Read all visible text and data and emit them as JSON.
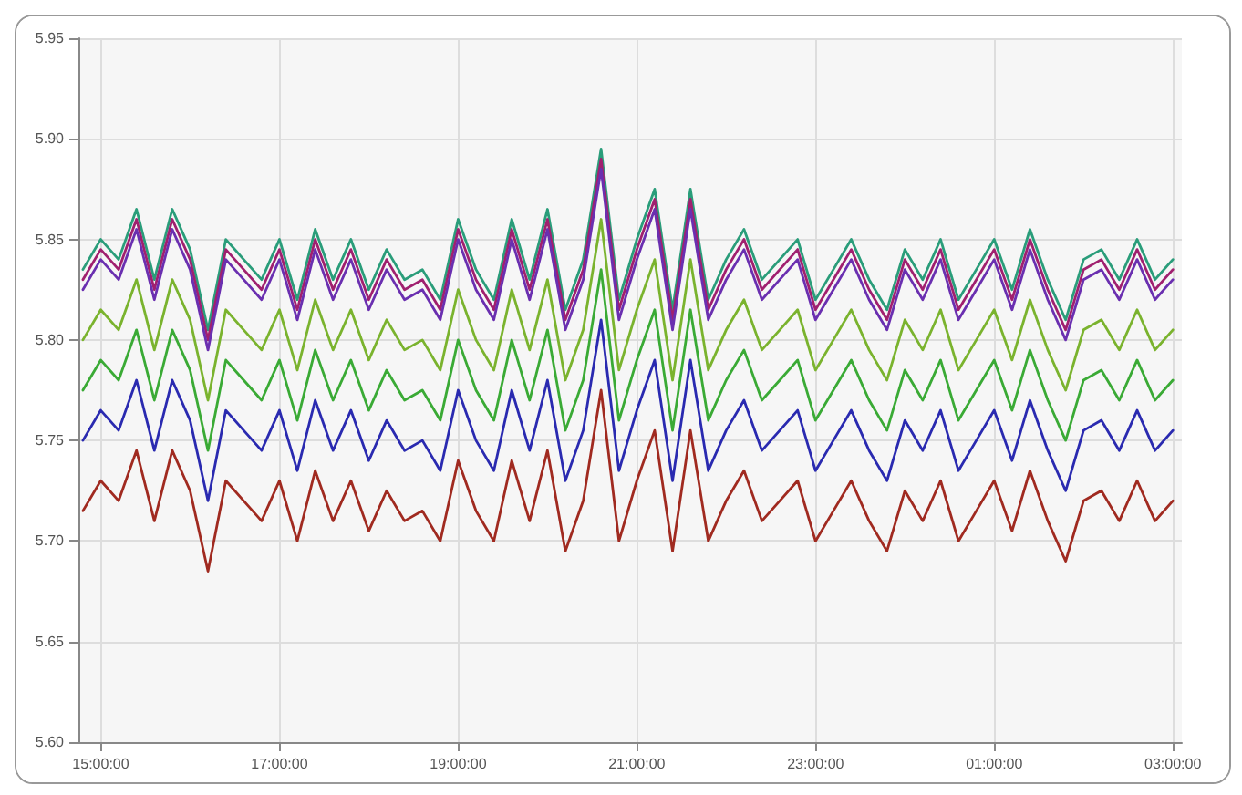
{
  "chart_data": {
    "type": "line",
    "x": [
      "--01-01T14:48",
      "--01-01T15:00",
      "--01-01T15:12",
      "--01-01T15:24",
      "--01-01T15:36",
      "--01-01T15:48",
      "--01-01T16:00",
      "--01-01T16:12",
      "--01-01T16:24",
      "--01-01T16:36",
      "--01-01T16:48",
      "--01-01T17:00",
      "--01-01T17:12",
      "--01-01T17:24",
      "--01-01T17:36",
      "--01-01T17:48",
      "--01-01T18:00",
      "--01-01T18:12",
      "--01-01T18:24",
      "--01-01T18:36",
      "--01-01T18:48",
      "--01-01T19:00",
      "--01-01T19:12",
      "--01-01T19:24",
      "--01-01T19:36",
      "--01-01T19:48",
      "--01-01T20:00",
      "--01-01T20:12",
      "--01-01T20:24",
      "--01-01T20:36",
      "--01-01T20:48",
      "--01-01T21:00",
      "--01-01T21:12",
      "--01-01T21:24",
      "--01-01T21:36",
      "--01-01T21:48",
      "--01-01T22:00",
      "--01-01T22:12",
      "--01-01T22:24",
      "--01-01T22:36",
      "--01-01T22:48",
      "--01-01T23:00",
      "--01-01T23:12",
      "--01-01T23:24",
      "--01-01T23:36",
      "--01-01T23:48",
      "--01-02T00:00",
      "--01-02T00:12",
      "--01-02T00:24",
      "--01-02T00:36",
      "--01-02T00:48",
      "--01-02T01:00",
      "--01-02T01:12",
      "--01-02T01:24",
      "--01-02T01:36",
      "--01-02T01:48",
      "--01-02T02:00",
      "--01-02T02:12",
      "--01-02T02:24",
      "--01-02T02:36",
      "--01-02T02:48",
      "--01-02T03:00"
    ],
    "series": [
      {
        "color": "#2a9d7a",
        "values": [
          5.835,
          5.85,
          5.84,
          5.865,
          5.83,
          5.865,
          5.845,
          5.805,
          5.85,
          5.84,
          5.83,
          5.85,
          5.82,
          5.855,
          5.83,
          5.85,
          5.825,
          5.845,
          5.83,
          5.835,
          5.82,
          5.86,
          5.835,
          5.82,
          5.86,
          5.83,
          5.865,
          5.815,
          5.84,
          5.895,
          5.82,
          5.85,
          5.875,
          5.815,
          5.875,
          5.82,
          5.84,
          5.855,
          5.83,
          5.84,
          5.85,
          5.82,
          5.835,
          5.85,
          5.83,
          5.815,
          5.845,
          5.83,
          5.85,
          5.82,
          5.835,
          5.85,
          5.825,
          5.855,
          5.83,
          5.81,
          5.84,
          5.845,
          5.83,
          5.85,
          5.83,
          5.84
        ]
      },
      {
        "color": "#a0206f",
        "values": [
          5.83,
          5.845,
          5.835,
          5.86,
          5.825,
          5.86,
          5.84,
          5.8,
          5.845,
          5.835,
          5.825,
          5.845,
          5.815,
          5.85,
          5.825,
          5.845,
          5.82,
          5.84,
          5.825,
          5.83,
          5.815,
          5.855,
          5.83,
          5.815,
          5.855,
          5.825,
          5.86,
          5.81,
          5.835,
          5.89,
          5.815,
          5.845,
          5.87,
          5.81,
          5.87,
          5.815,
          5.835,
          5.85,
          5.825,
          5.835,
          5.845,
          5.815,
          5.83,
          5.845,
          5.825,
          5.81,
          5.84,
          5.825,
          5.845,
          5.815,
          5.83,
          5.845,
          5.82,
          5.85,
          5.825,
          5.805,
          5.835,
          5.84,
          5.825,
          5.845,
          5.825,
          5.835
        ]
      },
      {
        "color": "#6a2fb0",
        "values": [
          5.825,
          5.84,
          5.83,
          5.855,
          5.82,
          5.855,
          5.835,
          5.795,
          5.84,
          5.83,
          5.82,
          5.84,
          5.81,
          5.845,
          5.82,
          5.84,
          5.815,
          5.835,
          5.82,
          5.825,
          5.81,
          5.85,
          5.825,
          5.81,
          5.85,
          5.82,
          5.855,
          5.805,
          5.83,
          5.885,
          5.81,
          5.84,
          5.865,
          5.805,
          5.865,
          5.81,
          5.83,
          5.845,
          5.82,
          5.83,
          5.84,
          5.81,
          5.825,
          5.84,
          5.82,
          5.805,
          5.835,
          5.82,
          5.84,
          5.81,
          5.825,
          5.84,
          5.815,
          5.845,
          5.82,
          5.8,
          5.83,
          5.835,
          5.82,
          5.84,
          5.82,
          5.83
        ]
      },
      {
        "color": "#7ab32e",
        "values": [
          5.8,
          5.815,
          5.805,
          5.83,
          5.795,
          5.83,
          5.81,
          5.77,
          5.815,
          5.805,
          5.795,
          5.815,
          5.785,
          5.82,
          5.795,
          5.815,
          5.79,
          5.81,
          5.795,
          5.8,
          5.785,
          5.825,
          5.8,
          5.785,
          5.825,
          5.795,
          5.83,
          5.78,
          5.805,
          5.86,
          5.785,
          5.815,
          5.84,
          5.78,
          5.84,
          5.785,
          5.805,
          5.82,
          5.795,
          5.805,
          5.815,
          5.785,
          5.8,
          5.815,
          5.795,
          5.78,
          5.81,
          5.795,
          5.815,
          5.785,
          5.8,
          5.815,
          5.79,
          5.82,
          5.795,
          5.775,
          5.805,
          5.81,
          5.795,
          5.815,
          5.795,
          5.805
        ]
      },
      {
        "color": "#3aaa35",
        "values": [
          5.775,
          5.79,
          5.78,
          5.805,
          5.77,
          5.805,
          5.785,
          5.745,
          5.79,
          5.78,
          5.77,
          5.79,
          5.76,
          5.795,
          5.77,
          5.79,
          5.765,
          5.785,
          5.77,
          5.775,
          5.76,
          5.8,
          5.775,
          5.76,
          5.8,
          5.77,
          5.805,
          5.755,
          5.78,
          5.835,
          5.76,
          5.79,
          5.815,
          5.755,
          5.815,
          5.76,
          5.78,
          5.795,
          5.77,
          5.78,
          5.79,
          5.76,
          5.775,
          5.79,
          5.77,
          5.755,
          5.785,
          5.77,
          5.79,
          5.76,
          5.775,
          5.79,
          5.765,
          5.795,
          5.77,
          5.75,
          5.78,
          5.785,
          5.77,
          5.79,
          5.77,
          5.78
        ]
      },
      {
        "color": "#2a2ab0",
        "values": [
          5.75,
          5.765,
          5.755,
          5.78,
          5.745,
          5.78,
          5.76,
          5.72,
          5.765,
          5.755,
          5.745,
          5.765,
          5.735,
          5.77,
          5.745,
          5.765,
          5.74,
          5.76,
          5.745,
          5.75,
          5.735,
          5.775,
          5.75,
          5.735,
          5.775,
          5.745,
          5.78,
          5.73,
          5.755,
          5.81,
          5.735,
          5.765,
          5.79,
          5.73,
          5.79,
          5.735,
          5.755,
          5.77,
          5.745,
          5.755,
          5.765,
          5.735,
          5.75,
          5.765,
          5.745,
          5.73,
          5.76,
          5.745,
          5.765,
          5.735,
          5.75,
          5.765,
          5.74,
          5.77,
          5.745,
          5.725,
          5.755,
          5.76,
          5.745,
          5.765,
          5.745,
          5.755
        ]
      },
      {
        "color": "#a02a20",
        "values": [
          5.715,
          5.73,
          5.72,
          5.745,
          5.71,
          5.745,
          5.725,
          5.685,
          5.73,
          5.72,
          5.71,
          5.73,
          5.7,
          5.735,
          5.71,
          5.73,
          5.705,
          5.725,
          5.71,
          5.715,
          5.7,
          5.74,
          5.715,
          5.7,
          5.74,
          5.71,
          5.745,
          5.695,
          5.72,
          5.775,
          5.7,
          5.73,
          5.755,
          5.695,
          5.755,
          5.7,
          5.72,
          5.735,
          5.71,
          5.72,
          5.73,
          5.7,
          5.715,
          5.73,
          5.71,
          5.695,
          5.725,
          5.71,
          5.73,
          5.7,
          5.715,
          5.73,
          5.705,
          5.735,
          5.71,
          5.69,
          5.72,
          5.725,
          5.71,
          5.73,
          5.71,
          5.72
        ]
      }
    ],
    "xlim": [
      "--01-01T14:45",
      "--01-02T03:06"
    ],
    "xticks": [
      {
        "value": "--01-01T15:00",
        "label": "15:00:00"
      },
      {
        "value": "--01-01T17:00",
        "label": "17:00:00"
      },
      {
        "value": "--01-01T19:00",
        "label": "19:00:00"
      },
      {
        "value": "--01-01T21:00",
        "label": "21:00:00"
      },
      {
        "value": "--01-01T23:00",
        "label": "23:00:00"
      },
      {
        "value": "--01-02T01:00",
        "label": "01:00:00"
      },
      {
        "value": "--01-02T03:00",
        "label": "03:00:00"
      }
    ],
    "ylim": [
      5.6,
      5.95
    ],
    "yticks": [
      {
        "value": 5.6,
        "label": "5.60"
      },
      {
        "value": 5.65,
        "label": "5.65"
      },
      {
        "value": 5.7,
        "label": "5.70"
      },
      {
        "value": 5.75,
        "label": "5.75"
      },
      {
        "value": 5.8,
        "label": "5.80"
      },
      {
        "value": 5.85,
        "label": "5.85"
      },
      {
        "value": 5.9,
        "label": "5.90"
      },
      {
        "value": 5.95,
        "label": "5.95"
      }
    ],
    "grid": true,
    "marker": "none",
    "line_style": "solid"
  }
}
